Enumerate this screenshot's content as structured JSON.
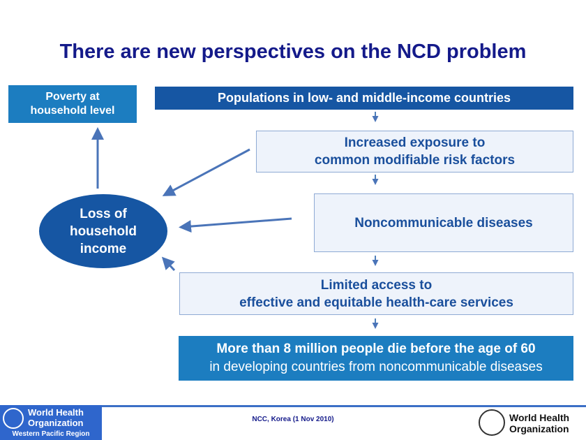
{
  "title": "There are new perspectives on the NCD problem",
  "nodes": {
    "poverty": "Poverty at household level",
    "populations": "Populations in low- and middle-income countries",
    "exposure_line1": "Increased exposure to",
    "exposure_line2": "common modifiable risk factors",
    "ncd": "Noncommunicable diseases",
    "access_line1": "Limited access to",
    "access_line2": "effective and equitable health-care services",
    "deaths_line1": "More than 8 million people die before the age of 60",
    "deaths_line2": "in developing countries from noncommunicable diseases",
    "income": "Loss of household income"
  },
  "footer": {
    "left_logo_line1": "World Health",
    "left_logo_line2": "Organization",
    "left_logo_region": "Western Pacific Region",
    "center": "NCC, Korea (1 Nov 2010)",
    "right_logo_line1": "World Health",
    "right_logo_line2": "Organization"
  },
  "colors": {
    "title": "#141a8a",
    "dark_box": "#1656a3",
    "mid_box": "#1c7dc0",
    "arrow": "#4a74b8"
  }
}
